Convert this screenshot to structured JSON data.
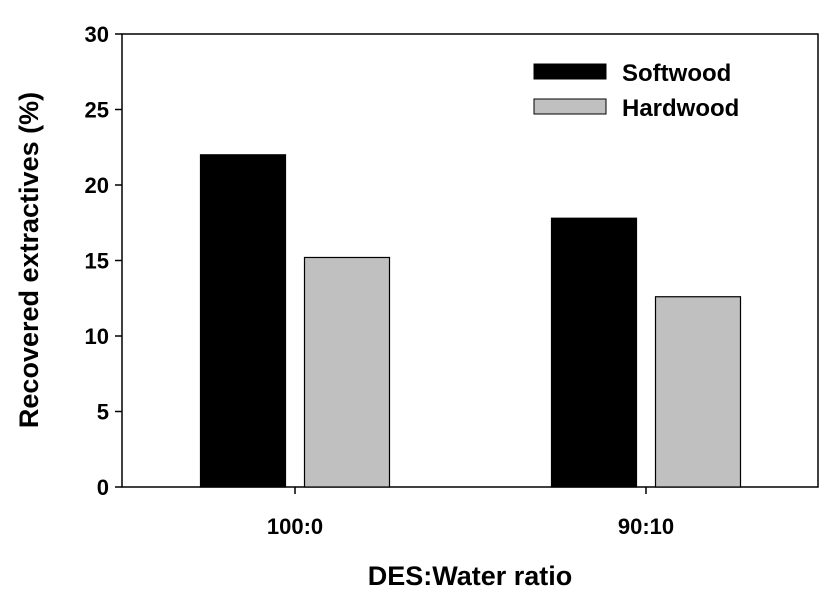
{
  "chart_data": {
    "type": "bar",
    "title": "",
    "xlabel": "DES:Water ratio",
    "ylabel": "Recovered extractives (%)",
    "ylim": [
      0,
      30
    ],
    "yticks": [
      0,
      5,
      10,
      15,
      20,
      25,
      30
    ],
    "ytick_labels": [
      "0",
      "5",
      "10",
      "15",
      "20",
      "25",
      "30"
    ],
    "categories": [
      "100:0",
      "90:10"
    ],
    "series": [
      {
        "name": "Softwood",
        "color": "#000000",
        "values": [
          22.0,
          17.8
        ]
      },
      {
        "name": "Hardwood",
        "color": "#c0c0c0",
        "values": [
          15.2,
          12.6
        ]
      }
    ],
    "legend_position": "top-right",
    "grid": false
  }
}
